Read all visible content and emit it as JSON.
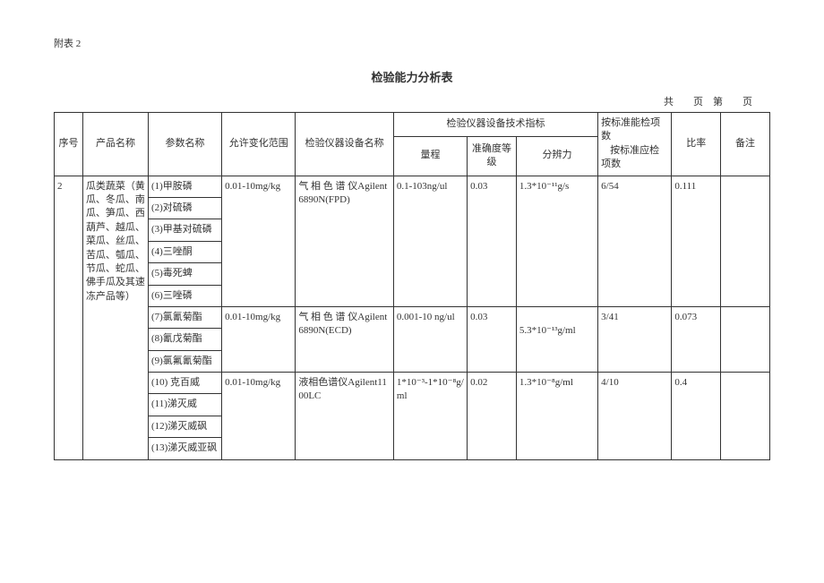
{
  "attachment_label": "附表 2",
  "title": "检验能力分析表",
  "page_info": "共　　页　第　　页",
  "headers": {
    "seq": "序号",
    "product": "产品名称",
    "param": "参数名称",
    "range": "允许变化范围",
    "equip": "检验仪器设备名称",
    "tech_group": "检验仪器设备技术指标",
    "measure": "量程",
    "accuracy": "准确度等级",
    "resolution": "分辨力",
    "standard": "按标准能检项数",
    "standard_sub": "按标准应检项数",
    "ratio": "比率",
    "remark": "备注"
  },
  "row": {
    "seq": "2",
    "product": "瓜类蔬菜（黄瓜、冬瓜、南瓜、笋瓜、西葫芦、越瓜、菜瓜、丝瓜、苦瓜、瓠瓜、节瓜、蛇瓜、佛手瓜及其速冻产品等）",
    "params": [
      "(1)甲胺磷",
      "(2)对硫磷",
      "(3)甲基对硫磷",
      "(4)三唑酮",
      "(5)毒死蜱",
      "(6)三唑磷",
      "(7)氯氰菊酯",
      "(8)氰戊菊酯",
      "(9)氯氟氰菊酯",
      "(10) 克百威",
      "(11)涕灭威",
      "(12)涕灭威砜",
      "(13)涕灭威亚砜"
    ],
    "groups": [
      {
        "range": "0.01-10mg/kg",
        "equip": "气 相 色 谱 仪Agilent6890N(FPD)",
        "measure": "0.1-103ng/ul",
        "accuracy": "0.03",
        "resolution": "1.3*10⁻¹¹g/s",
        "standard": "6/54",
        "ratio": "0.111"
      },
      {
        "range": "0.01-10mg/kg",
        "equip": "气 相 色 谱 仪Agilent6890N(ECD)",
        "measure": "0.001-10 ng/ul",
        "accuracy": "0.03",
        "resolution_line2": "5.3*10⁻¹³g/ml",
        "standard": "3/41",
        "ratio": "0.073"
      },
      {
        "range": "0.01-10mg/kg",
        "equip": "液相色谱仪Agilent1100LC",
        "measure": "1*10⁻³-1*10⁻⁸g/ml",
        "accuracy": "0.02",
        "resolution": "1.3*10⁻⁸g/ml",
        "standard": "4/10",
        "ratio": "0.4"
      }
    ]
  }
}
